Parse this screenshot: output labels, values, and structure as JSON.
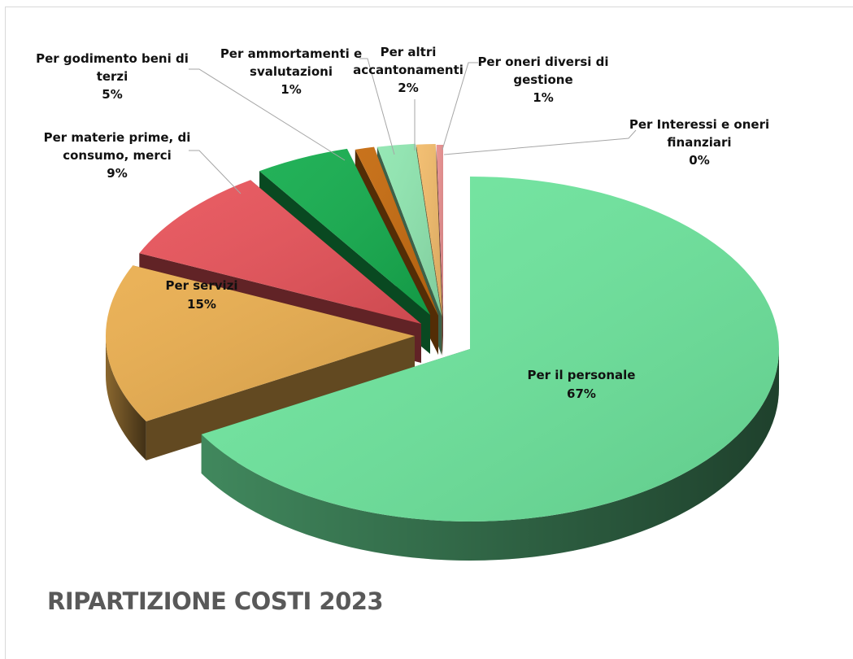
{
  "chart_data": {
    "type": "pie",
    "title": "RIPARTIZIONE COSTI 2023",
    "value_format": "percent",
    "exploded": true,
    "style": "3d",
    "slices": [
      {
        "label": "Per il personale",
        "value": 67,
        "percent_label": "67%",
        "color": "#6EE69E"
      },
      {
        "label": "Per servizi",
        "value": 15,
        "percent_label": "15%",
        "color": "#EAAE4F"
      },
      {
        "label": "Per materie prime, di consumo, merci",
        "value": 9,
        "percent_label": "9%",
        "color": "#E8535A"
      },
      {
        "label": "Per godimento beni di terzi",
        "value": 5,
        "percent_label": "5%",
        "color": "#15AD4E"
      },
      {
        "label": "Per ammortamenti e svalutazioni",
        "value": 1,
        "percent_label": "1%",
        "color": "#C56A0E"
      },
      {
        "label": "Per altri accantonamenti",
        "value": 2,
        "percent_label": "2%",
        "color": "#8FE6B0"
      },
      {
        "label": "Per oneri diversi di gestione",
        "value": 1,
        "percent_label": "1%",
        "color": "#F2BB6A"
      },
      {
        "label": "Per Interessi e oneri finanziari",
        "value": 0,
        "percent_label": "0%",
        "color": "#E88E8E"
      }
    ],
    "label_lines": [
      [
        "Per il personale",
        "67%"
      ],
      [
        "Per servizi",
        "15%"
      ],
      [
        "Per materie prime, di",
        "consumo, merci",
        "9%"
      ],
      [
        "Per godimento beni di",
        "terzi",
        "5%"
      ],
      [
        "Per ammortamenti e",
        "svalutazioni",
        "1%"
      ],
      [
        "Per altri",
        "accantonamenti",
        "2%"
      ],
      [
        "Per oneri diversi di",
        "gestione",
        "1%"
      ],
      [
        "Per Interessi e oneri",
        "finanziari",
        "0%"
      ]
    ]
  }
}
